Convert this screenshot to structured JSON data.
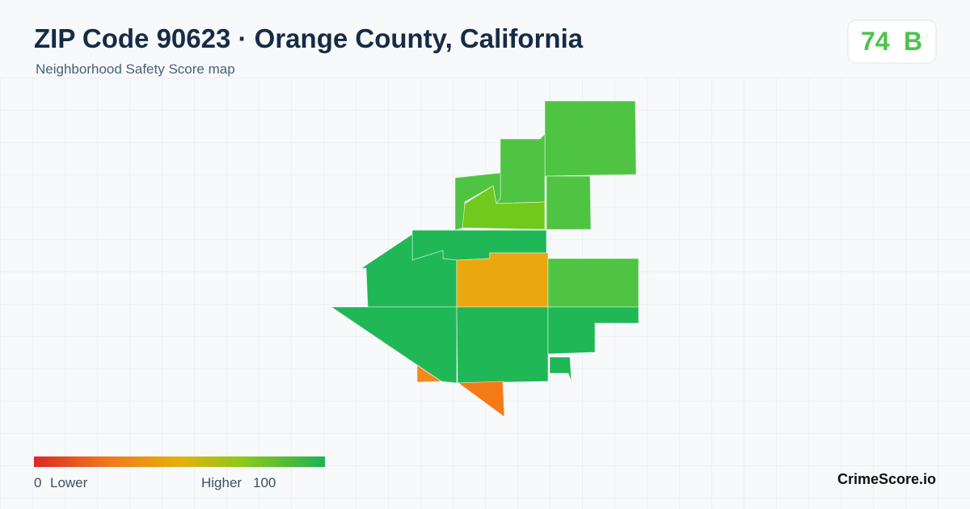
{
  "header": {
    "title": "ZIP Code 90623 · Orange County, California",
    "subtitle": "Neighborhood Safety Score map"
  },
  "score": {
    "value": 74,
    "grade": "B"
  },
  "legend": {
    "min": 0,
    "min_label": "Lower",
    "max_label": "Higher",
    "max": 100
  },
  "brand": "CrimeScore.io"
}
